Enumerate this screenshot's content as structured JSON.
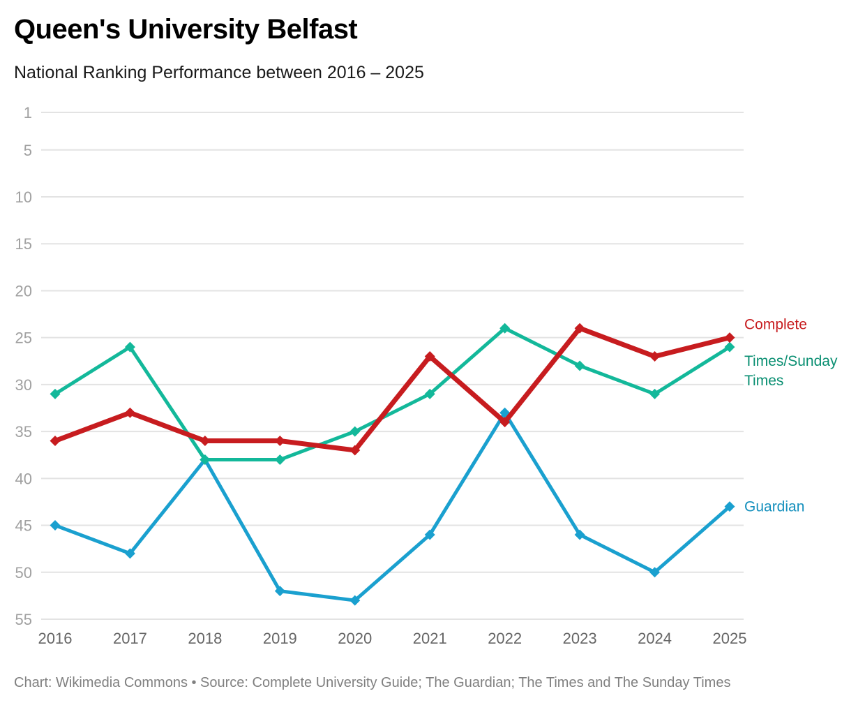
{
  "header": {
    "title": "Queen's University Belfast",
    "subtitle": "National Ranking Performance between 2016 – 2025"
  },
  "footer": {
    "credit": "Chart: Wikimedia Commons • Source: Complete University Guide; The Guardian; The Times and The Sunday Times"
  },
  "chart_data": {
    "type": "line",
    "title": "Queen's University Belfast",
    "subtitle": "National Ranking Performance between 2016 – 2025",
    "xlabel": "",
    "ylabel": "",
    "x": [
      "2016",
      "2017",
      "2018",
      "2019",
      "2020",
      "2021",
      "2022",
      "2023",
      "2024",
      "2025"
    ],
    "ylim": [
      1,
      55
    ],
    "y_inverted": true,
    "yticks": [
      1,
      5,
      10,
      15,
      20,
      25,
      30,
      35,
      40,
      45,
      50,
      55
    ],
    "grid": true,
    "legend": "direct labels at right end of lines",
    "series": [
      {
        "name": "Guardian",
        "label_lines": [
          "Guardian"
        ],
        "color": "#1aa0cf",
        "label_color": "#1590bd",
        "weight": "normal",
        "values": [
          45,
          48,
          38,
          52,
          53,
          46,
          33,
          46,
          50,
          43
        ]
      },
      {
        "name": "Times/Sunday Times",
        "label_lines": [
          "Times/Sunday",
          "Times"
        ],
        "color": "#13b89a",
        "label_color": "#0a8f72",
        "weight": "normal",
        "values": [
          31,
          26,
          38,
          38,
          35,
          31,
          24,
          28,
          31,
          26
        ]
      },
      {
        "name": "Complete",
        "label_lines": [
          "Complete"
        ],
        "color": "#c71c1f",
        "label_color": "#c71c1f",
        "weight": "bold",
        "values": [
          36,
          33,
          36,
          36,
          37,
          27,
          34,
          24,
          27,
          25
        ]
      }
    ]
  }
}
